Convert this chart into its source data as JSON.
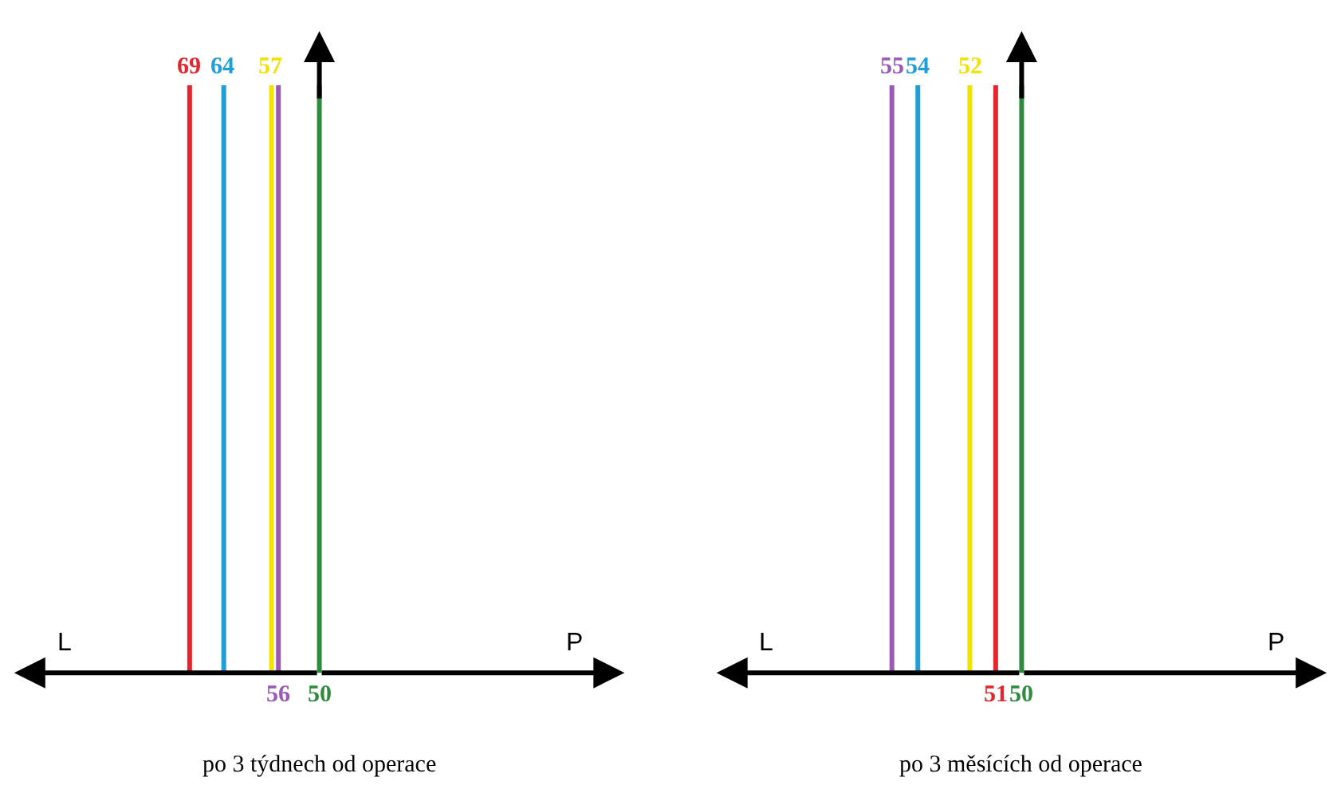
{
  "chart_data": [
    {
      "type": "other",
      "xlabel": "po 3 týdnech od operace",
      "annotations": [
        "L",
        "P"
      ],
      "values": [
        69,
        64,
        57,
        56,
        50
      ],
      "colors": [
        "#e3262e",
        "#1f9fd6",
        "#f2e200",
        "#9b59b6",
        "#2e8b3e"
      ],
      "data_labels": true
    },
    {
      "type": "other",
      "xlabel": "po 3 měsících od operace",
      "annotations": [
        "L",
        "P"
      ],
      "values": [
        55,
        54,
        52,
        51,
        50
      ],
      "colors": [
        "#9b59b6",
        "#1f9fd6",
        "#f2e200",
        "#e3262e",
        "#2e8b3e"
      ],
      "data_labels": true
    }
  ]
}
